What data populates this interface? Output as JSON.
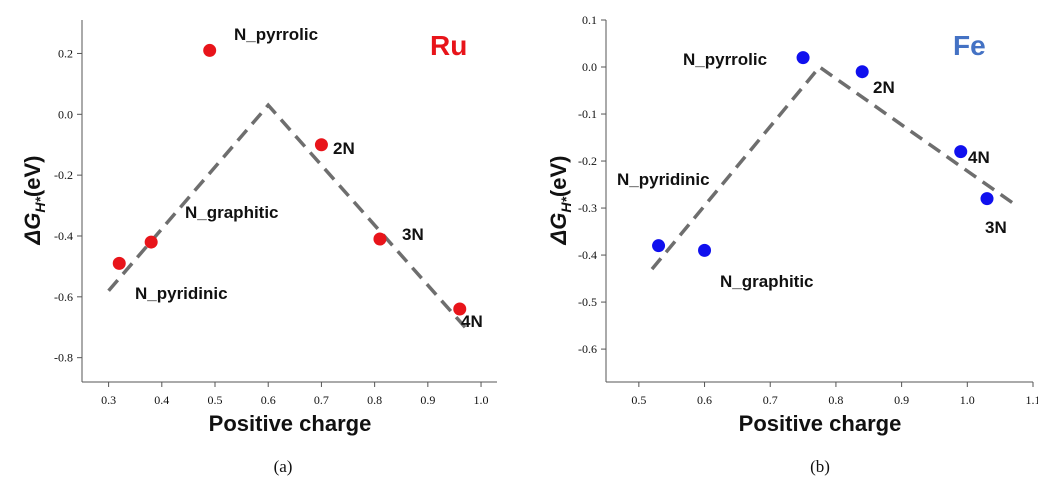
{
  "chart_data": [
    {
      "type": "scatter",
      "panel": "(a)",
      "metal": "Ru",
      "metal_color": "#e8141a",
      "point_color": "#e8141a",
      "xlabel": "Positive charge",
      "ylabel": "ΔG",
      "ylabel_sub": "H*",
      "ylabel_unit": "(eV)",
      "xlim": [
        0.25,
        1.03
      ],
      "ylim": [
        -0.88,
        0.31
      ],
      "xticks": [
        "0.3",
        "0.4",
        "0.5",
        "0.6",
        "0.7",
        "0.8",
        "0.9",
        "1.0"
      ],
      "yticks": [
        "0.2",
        "0.0",
        "-0.2",
        "-0.4",
        "-0.6",
        "-0.8"
      ],
      "points": [
        {
          "label": "N_pyridinic",
          "x": 0.32,
          "y": -0.49
        },
        {
          "label": "N_graphitic",
          "x": 0.38,
          "y": -0.42
        },
        {
          "label": "N_pyrrolic",
          "x": 0.49,
          "y": 0.21
        },
        {
          "label": "2N",
          "x": 0.7,
          "y": -0.1
        },
        {
          "label": "3N",
          "x": 0.81,
          "y": -0.41
        },
        {
          "label": "4N",
          "x": 0.96,
          "y": -0.64
        }
      ],
      "trend_line": [
        [
          0.3,
          -0.58
        ],
        [
          0.6,
          0.03
        ],
        [
          0.97,
          -0.7
        ]
      ],
      "grid": false
    },
    {
      "type": "scatter",
      "panel": "(b)",
      "metal": "Fe",
      "metal_color": "#4472c4",
      "point_color": "#1010ee",
      "xlabel": "Positive charge",
      "ylabel": "ΔG",
      "ylabel_sub": "H*",
      "ylabel_unit": "(eV)",
      "xlim": [
        0.45,
        1.1
      ],
      "ylim": [
        -0.67,
        0.1
      ],
      "xticks": [
        "0.5",
        "0.6",
        "0.7",
        "0.8",
        "0.9",
        "1.0",
        "1.1"
      ],
      "yticks": [
        "0.1",
        "0.0",
        "-0.1",
        "-0.2",
        "-0.3",
        "-0.4",
        "-0.5",
        "-0.6"
      ],
      "points": [
        {
          "label": "N_pyrrolic",
          "x": 0.75,
          "y": 0.02
        },
        {
          "label": "2N",
          "x": 0.84,
          "y": -0.01
        },
        {
          "label": "4N",
          "x": 0.99,
          "y": -0.18
        },
        {
          "label": "3N",
          "x": 1.03,
          "y": -0.28
        },
        {
          "label": "N_graphitic",
          "x": 0.6,
          "y": -0.39
        },
        {
          "label": "N_pyridinic",
          "x": 0.53,
          "y": -0.38
        }
      ],
      "trend_line": [
        [
          0.52,
          -0.43
        ],
        [
          0.775,
          0.0
        ],
        [
          1.07,
          -0.29
        ]
      ],
      "grid": false
    }
  ]
}
